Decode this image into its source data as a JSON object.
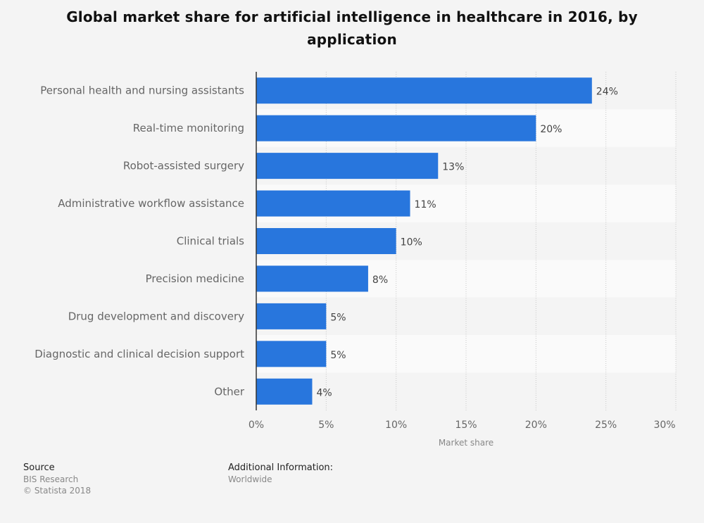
{
  "title": "Global market share for artificial intelligence in healthcare in 2016, by application",
  "chart_data": {
    "type": "bar",
    "orientation": "horizontal",
    "categories": [
      "Personal health and nursing assistants",
      "Real-time monitoring",
      "Robot-assisted surgery",
      "Administrative workflow assistance",
      "Clinical trials",
      "Precision medicine",
      "Drug development and discovery",
      "Diagnostic and clinical decision support",
      "Other"
    ],
    "values": [
      24,
      20,
      13,
      11,
      10,
      8,
      5,
      5,
      4
    ],
    "value_labels": [
      "24%",
      "20%",
      "13%",
      "11%",
      "10%",
      "8%",
      "5%",
      "5%",
      "4%"
    ],
    "xlabel": "Market share",
    "xlim": [
      0,
      30
    ],
    "xticks": [
      0,
      5,
      10,
      15,
      20,
      25,
      30
    ],
    "xtick_labels": [
      "0%",
      "5%",
      "10%",
      "15%",
      "20%",
      "25%",
      "30%"
    ],
    "bar_color": "#2876dd",
    "grid": true
  },
  "footer": {
    "source_heading": "Source",
    "source_name": "BIS Research",
    "copyright": "© Statista 2018",
    "info_heading": "Additional Information:",
    "info_value": "Worldwide"
  }
}
